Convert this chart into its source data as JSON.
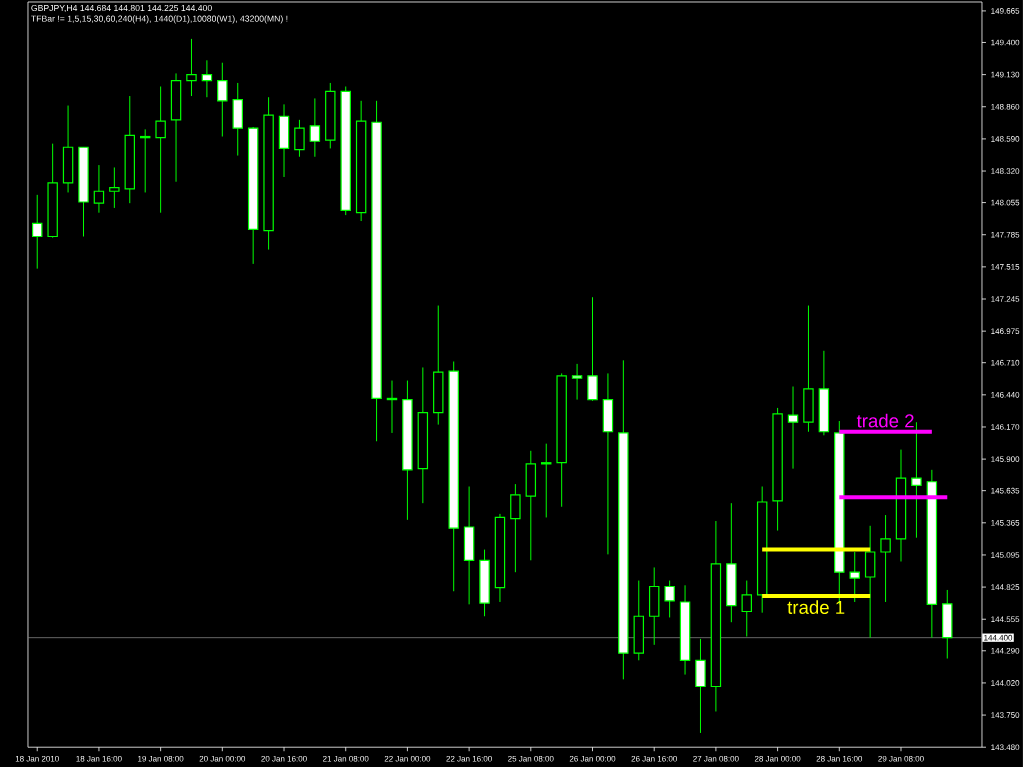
{
  "chart_data": {
    "type": "candlestick",
    "title": "GBPJPY,H4  144.684 144.801 144.225 144.400",
    "subtitle": "TFBar != 1,5,15,30,60,240(H4), 1440(D1),10080(W1), 43200(MN) !",
    "categories": [
      "18 Jan 2010",
      null,
      null,
      null,
      "18 Jan 16:00",
      null,
      null,
      null,
      "19 Jan 08:00",
      null,
      null,
      null,
      "20 Jan 00:00",
      null,
      null,
      null,
      "20 Jan 16:00",
      null,
      null,
      null,
      "21 Jan 08:00",
      null,
      null,
      null,
      "22 Jan 00:00",
      null,
      null,
      null,
      "22 Jan 16:00",
      null,
      null,
      null,
      "25 Jan 08:00",
      null,
      null,
      null,
      "26 Jan 00:00",
      null,
      null,
      null,
      "26 Jan 16:00",
      null,
      null,
      null,
      "27 Jan 08:00",
      null,
      null,
      null,
      "28 Jan 00:00",
      null,
      null,
      null,
      "28 Jan 16:00",
      null,
      null,
      null,
      "29 Jan 08:00",
      null,
      null,
      null
    ],
    "ohlc": [
      [
        147.88,
        148.12,
        147.5,
        147.77
      ],
      [
        147.77,
        148.55,
        147.76,
        148.22
      ],
      [
        148.22,
        148.87,
        148.14,
        148.52
      ],
      [
        148.52,
        148.52,
        147.77,
        148.06
      ],
      [
        148.05,
        148.37,
        147.97,
        148.15
      ],
      [
        148.15,
        148.35,
        148.01,
        148.18
      ],
      [
        148.17,
        148.95,
        148.05,
        148.62
      ],
      [
        148.6,
        148.67,
        148.14,
        148.61
      ],
      [
        148.6,
        149.03,
        147.97,
        148.74
      ],
      [
        148.75,
        149.14,
        148.23,
        149.08
      ],
      [
        149.08,
        149.43,
        148.95,
        149.13
      ],
      [
        149.13,
        149.25,
        148.94,
        149.08
      ],
      [
        149.08,
        149.23,
        148.61,
        148.91
      ],
      [
        148.92,
        149.06,
        148.45,
        148.68
      ],
      [
        148.68,
        148.69,
        147.54,
        147.83
      ],
      [
        147.82,
        148.94,
        147.66,
        148.79
      ],
      [
        148.78,
        148.88,
        148.27,
        148.51
      ],
      [
        148.5,
        148.75,
        148.44,
        148.68
      ],
      [
        148.7,
        148.93,
        148.44,
        148.57
      ],
      [
        148.58,
        149.06,
        148.51,
        148.99
      ],
      [
        148.99,
        149.03,
        147.95,
        147.99
      ],
      [
        147.97,
        148.91,
        147.9,
        148.74
      ],
      [
        148.73,
        148.91,
        146.05,
        146.41
      ],
      [
        146.4,
        146.56,
        146.12,
        146.41
      ],
      [
        146.4,
        146.56,
        145.39,
        145.81
      ],
      [
        145.82,
        146.67,
        145.53,
        146.29
      ],
      [
        146.29,
        147.19,
        146.19,
        146.63
      ],
      [
        146.64,
        146.72,
        144.79,
        145.32
      ],
      [
        145.33,
        145.67,
        144.68,
        145.05
      ],
      [
        145.05,
        145.14,
        144.58,
        144.69
      ],
      [
        144.82,
        145.44,
        144.7,
        145.41
      ],
      [
        145.4,
        145.69,
        144.95,
        145.6
      ],
      [
        145.59,
        145.97,
        145.05,
        145.86
      ],
      [
        145.86,
        146.03,
        145.41,
        145.87
      ],
      [
        145.87,
        146.62,
        145.5,
        146.6
      ],
      [
        146.6,
        146.7,
        146.4,
        146.58
      ],
      [
        146.6,
        147.26,
        146.39,
        146.4
      ],
      [
        146.4,
        146.62,
        145.1,
        146.13
      ],
      [
        146.12,
        146.73,
        144.05,
        144.27
      ],
      [
        144.27,
        144.88,
        144.21,
        144.58
      ],
      [
        144.58,
        144.99,
        144.34,
        144.83
      ],
      [
        144.83,
        144.88,
        144.57,
        144.71
      ],
      [
        144.7,
        144.84,
        144.09,
        144.21
      ],
      [
        144.21,
        144.39,
        143.6,
        143.99
      ],
      [
        143.99,
        145.38,
        143.78,
        145.02
      ],
      [
        145.02,
        145.53,
        144.53,
        144.67
      ],
      [
        144.62,
        144.88,
        144.41,
        144.76
      ],
      [
        144.76,
        145.67,
        144.61,
        145.54
      ],
      [
        145.55,
        146.33,
        145.3,
        146.28
      ],
      [
        146.27,
        146.51,
        145.82,
        146.21
      ],
      [
        146.21,
        147.19,
        146.13,
        146.49
      ],
      [
        146.49,
        146.81,
        146.1,
        146.13
      ],
      [
        146.12,
        146.22,
        144.68,
        144.95
      ],
      [
        144.95,
        145.12,
        144.7,
        144.9
      ],
      [
        144.91,
        145.34,
        144.4,
        145.12
      ],
      [
        145.12,
        145.43,
        144.7,
        145.23
      ],
      [
        145.23,
        145.98,
        145.04,
        145.74
      ],
      [
        145.74,
        146.21,
        145.24,
        145.68
      ],
      [
        145.71,
        145.81,
        144.4,
        144.68
      ],
      [
        144.684,
        144.801,
        144.225,
        144.4
      ]
    ],
    "color": "#00ff00",
    "colors": [
      "#ffffff",
      "#000000",
      "#000000",
      "#ffffff",
      "#000000",
      "#000000",
      "#000000",
      "#000000",
      "#000000",
      "#000000",
      "#000000",
      "#ffffff",
      "#ffffff",
      "#ffffff",
      "#ffffff",
      "#000000",
      "#ffffff",
      "#000000",
      "#ffffff",
      "#000000",
      "#ffffff",
      "#000000",
      "#ffffff",
      "#000000",
      "#ffffff",
      "#000000",
      "#000000",
      "#ffffff",
      "#ffffff",
      "#ffffff",
      "#000000",
      "#000000",
      "#000000",
      "#000000",
      "#000000",
      "#ffffff",
      "#ffffff",
      "#ffffff",
      "#ffffff",
      "#000000",
      "#000000",
      "#ffffff",
      "#ffffff",
      "#ffffff",
      "#000000",
      "#ffffff",
      "#000000",
      "#000000",
      "#000000",
      "#ffffff",
      "#000000",
      "#ffffff",
      "#ffffff",
      "#ffffff",
      "#000000",
      "#000000",
      "#000000",
      "#ffffff",
      "#ffffff",
      "#ffffff"
    ],
    "series": [
      {
        "type": "line",
        "color": "#ffff00",
        "values": [
          null,
          null,
          null,
          null,
          null,
          null,
          null,
          null,
          null,
          null,
          null,
          null,
          null,
          null,
          null,
          null,
          null,
          null,
          null,
          null,
          null,
          null,
          null,
          null,
          null,
          null,
          null,
          null,
          null,
          null,
          null,
          null,
          null,
          null,
          null,
          null,
          null,
          null,
          null,
          null,
          null,
          null,
          null,
          null,
          null,
          null,
          null,
          145.14,
          145.14,
          145.14,
          145.14,
          145.14,
          145.14,
          145.14,
          145.14,
          null,
          null,
          null,
          null,
          null
        ]
      },
      {
        "type": "line",
        "name": "trade 1",
        "color": "#ffff00",
        "values": [
          null,
          null,
          null,
          null,
          null,
          null,
          null,
          null,
          null,
          null,
          null,
          null,
          null,
          null,
          null,
          null,
          null,
          null,
          null,
          null,
          null,
          null,
          null,
          null,
          null,
          null,
          null,
          null,
          null,
          null,
          null,
          null,
          null,
          null,
          null,
          null,
          null,
          null,
          null,
          null,
          null,
          null,
          null,
          null,
          null,
          null,
          null,
          144.75,
          144.75,
          144.75,
          144.75,
          144.75,
          144.75,
          144.75,
          144.75,
          null,
          null,
          null,
          null,
          null
        ]
      },
      {
        "type": "line",
        "name": "trade 2",
        "color": "#ff00ff",
        "values": [
          null,
          null,
          null,
          null,
          null,
          null,
          null,
          null,
          null,
          null,
          null,
          null,
          null,
          null,
          null,
          null,
          null,
          null,
          null,
          null,
          null,
          null,
          null,
          null,
          null,
          null,
          null,
          null,
          null,
          null,
          null,
          null,
          null,
          null,
          null,
          null,
          null,
          null,
          null,
          null,
          null,
          null,
          null,
          null,
          null,
          null,
          null,
          null,
          null,
          null,
          null,
          null,
          146.13,
          146.13,
          146.13,
          146.13,
          146.13,
          146.13,
          146.13,
          null
        ]
      },
      {
        "type": "line",
        "color": "#ff00ff",
        "values": [
          null,
          null,
          null,
          null,
          null,
          null,
          null,
          null,
          null,
          null,
          null,
          null,
          null,
          null,
          null,
          null,
          null,
          null,
          null,
          null,
          null,
          null,
          null,
          null,
          null,
          null,
          null,
          null,
          null,
          null,
          null,
          null,
          null,
          null,
          null,
          null,
          null,
          null,
          null,
          null,
          null,
          null,
          null,
          null,
          null,
          null,
          null,
          null,
          null,
          null,
          null,
          null,
          145.58,
          145.58,
          145.58,
          145.58,
          145.58,
          145.58,
          145.58,
          145.58
        ]
      }
    ],
    "ylim": [
      143.48,
      149.74
    ],
    "yticks": [
      149.665,
      {
        "value": 149.4,
        "label": "149.400"
      },
      {
        "value": 149.13,
        "label": "149.130"
      },
      {
        "value": 148.86,
        "label": "148.860"
      },
      {
        "value": 148.59,
        "label": "148.590"
      },
      {
        "value": 148.32,
        "label": "148.320"
      },
      148.055,
      147.785,
      147.515,
      147.245,
      146.975,
      {
        "value": 146.71,
        "label": "146.710"
      },
      {
        "value": 146.44,
        "label": "146.440"
      },
      {
        "value": 146.17,
        "label": "146.170"
      },
      {
        "value": 145.9,
        "label": "145.900"
      },
      145.635,
      145.365,
      145.095,
      144.825,
      144.555,
      {
        "value": 144.29,
        "label": "144.290"
      },
      {
        "value": 144.02,
        "label": "144.020"
      },
      {
        "value": 143.75,
        "label": "143.750"
      },
      {
        "value": 143.48,
        "label": "143.480"
      }
    ],
    "ref_lines": [
      {
        "axis": "y",
        "value": 144.4,
        "label": "144.400",
        "color": "#808080"
      }
    ]
  }
}
